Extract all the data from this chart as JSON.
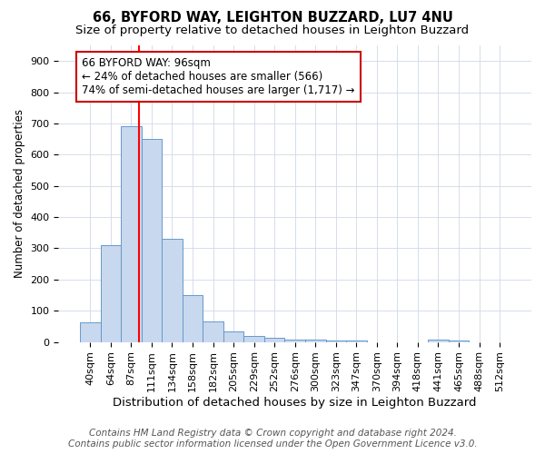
{
  "title": "66, BYFORD WAY, LEIGHTON BUZZARD, LU7 4NU",
  "subtitle": "Size of property relative to detached houses in Leighton Buzzard",
  "xlabel": "Distribution of detached houses by size in Leighton Buzzard",
  "ylabel": "Number of detached properties",
  "footer1": "Contains HM Land Registry data © Crown copyright and database right 2024.",
  "footer2": "Contains public sector information licensed under the Open Government Licence v3.0.",
  "bar_labels": [
    "40sqm",
    "64sqm",
    "87sqm",
    "111sqm",
    "134sqm",
    "158sqm",
    "182sqm",
    "205sqm",
    "229sqm",
    "252sqm",
    "276sqm",
    "300sqm",
    "323sqm",
    "347sqm",
    "370sqm",
    "394sqm",
    "418sqm",
    "441sqm",
    "465sqm",
    "488sqm",
    "512sqm"
  ],
  "bar_values": [
    63,
    310,
    690,
    650,
    330,
    150,
    65,
    33,
    20,
    12,
    9,
    8,
    5,
    4,
    0,
    0,
    0,
    7,
    4,
    0,
    0
  ],
  "bar_color": "#c8d8ee",
  "bar_edge_color": "#6699cc",
  "annotation_text_line1": "66 BYFORD WAY: 96sqm",
  "annotation_text_line2": "← 24% of detached houses are smaller (566)",
  "annotation_text_line3": "74% of semi-detached houses are larger (1,717) →",
  "annotation_box_color": "#cc0000",
  "red_line_x": 2.375,
  "ylim_max": 950,
  "yticks": [
    0,
    100,
    200,
    300,
    400,
    500,
    600,
    700,
    800,
    900
  ],
  "title_fontsize": 10.5,
  "subtitle_fontsize": 9.5,
  "xlabel_fontsize": 9.5,
  "ylabel_fontsize": 8.5,
  "tick_fontsize": 8,
  "annotation_fontsize": 8.5,
  "footer_fontsize": 7.5,
  "background_color": "#ffffff",
  "grid_color": "#d0d8e8"
}
